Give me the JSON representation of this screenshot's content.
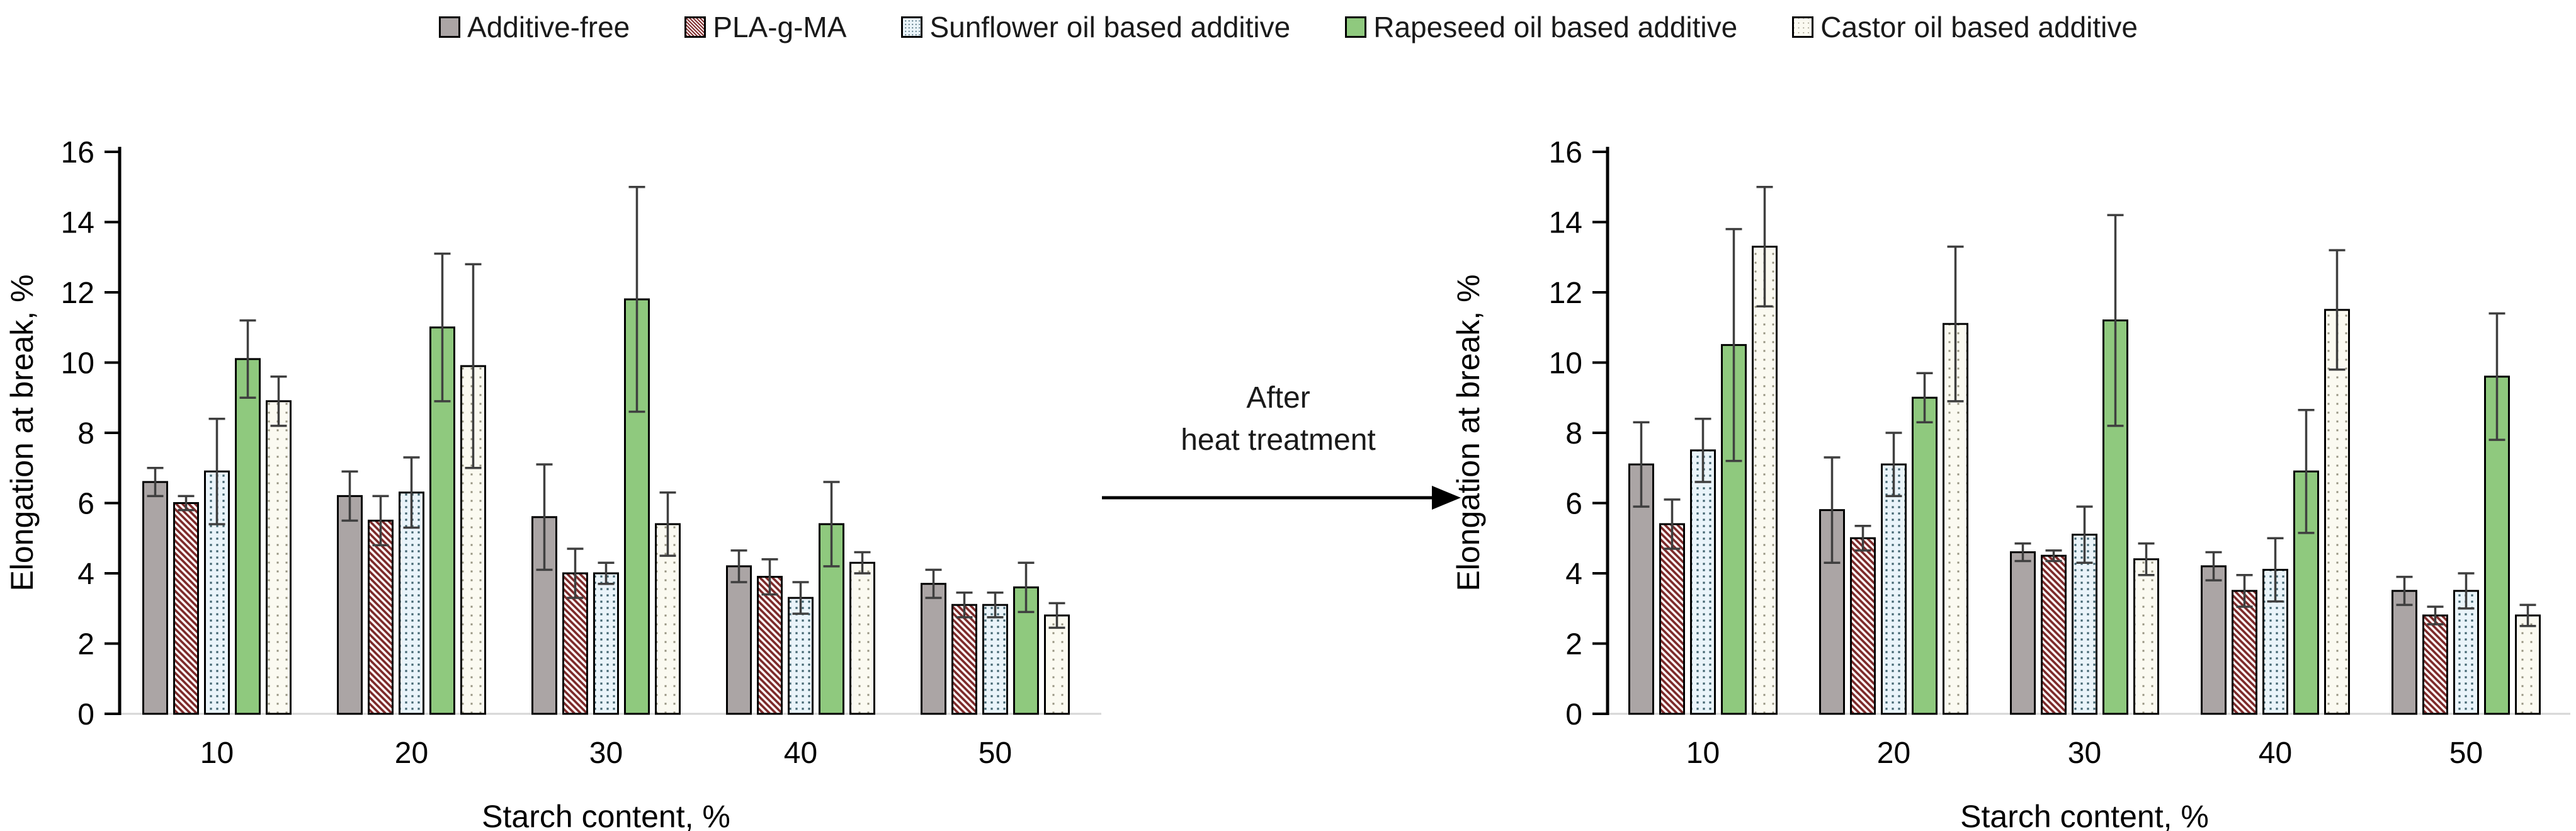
{
  "page": {
    "background": "#ffffff"
  },
  "colors": {
    "bar_border": "#000000",
    "error_bar": "#3f3f3f",
    "baseline": "#d6d6d6",
    "axis": "#000000",
    "text": "#1a1a1a"
  },
  "legend": {
    "items": [
      {
        "key": "additive_free",
        "label": "Additive-free"
      },
      {
        "key": "pla_g_ma",
        "label": "PLA-g-MA"
      },
      {
        "key": "sunflower",
        "label": "Sunflower oil based additive"
      },
      {
        "key": "rapeseed",
        "label": "Rapeseed oil based additive"
      },
      {
        "key": "castor",
        "label": "Castor oil based additive"
      }
    ]
  },
  "series_styles": [
    {
      "key": "additive_free",
      "fill": "solid",
      "color": "#aba5a5"
    },
    {
      "key": "pla_g_ma",
      "fill": "stripes",
      "bg": "#fcf3f3",
      "fg": "#7c2a2a",
      "tile": 10
    },
    {
      "key": "sunflower",
      "fill": "dots",
      "bg": "#eaf4fa",
      "fg": "#3e616d",
      "tile": 10,
      "dot": 3.2
    },
    {
      "key": "rapeseed",
      "fill": "solid",
      "color": "#8fc97e"
    },
    {
      "key": "castor",
      "fill": "dots",
      "bg": "#fbfaf1",
      "fg": "#94917f",
      "tile": 14,
      "dot": 3
    }
  ],
  "annotation": {
    "line1": "After",
    "line2": "heat treatment"
  },
  "chart_data": [
    {
      "id": "before",
      "type": "bar",
      "title": "",
      "xlabel": "Starch content, %",
      "ylabel": "Elongation at break, %",
      "categories": [
        "10",
        "20",
        "30",
        "40",
        "50"
      ],
      "ylim": [
        0,
        16
      ],
      "ytick_step": 2,
      "grid": false,
      "legend_position": "top",
      "series": [
        {
          "name": "Additive-free",
          "values": [
            6.6,
            6.2,
            5.6,
            4.2,
            3.7
          ],
          "errors": [
            0.4,
            0.7,
            1.5,
            0.45,
            0.4
          ]
        },
        {
          "name": "PLA-g-MA",
          "values": [
            6.0,
            5.5,
            4.0,
            3.9,
            3.1
          ],
          "errors": [
            0.2,
            0.7,
            0.7,
            0.5,
            0.35
          ]
        },
        {
          "name": "Sunflower oil based additive",
          "values": [
            6.9,
            6.3,
            4.0,
            3.3,
            3.1
          ],
          "errors": [
            1.5,
            1.0,
            0.3,
            0.45,
            0.35
          ]
        },
        {
          "name": "Rapeseed oil based additive",
          "values": [
            10.1,
            11.0,
            11.8,
            5.4,
            3.6
          ],
          "errors": [
            1.1,
            2.1,
            3.2,
            1.2,
            0.7
          ]
        },
        {
          "name": "Castor oil based additive",
          "values": [
            8.9,
            9.9,
            5.4,
            4.3,
            2.8
          ],
          "errors": [
            0.7,
            2.9,
            0.9,
            0.3,
            0.35
          ]
        }
      ]
    },
    {
      "id": "after",
      "type": "bar",
      "title": "",
      "xlabel": "Starch content, %",
      "ylabel": "Elongation at break, %",
      "categories": [
        "10",
        "20",
        "30",
        "40",
        "50"
      ],
      "ylim": [
        0,
        16
      ],
      "ytick_step": 2,
      "grid": false,
      "legend_position": "top",
      "series": [
        {
          "name": "Additive-free",
          "values": [
            7.1,
            5.8,
            4.6,
            4.2,
            3.5
          ],
          "errors": [
            1.2,
            1.5,
            0.25,
            0.4,
            0.4
          ]
        },
        {
          "name": "PLA-g-MA",
          "values": [
            5.4,
            5.0,
            4.5,
            3.5,
            2.8
          ],
          "errors": [
            0.7,
            0.35,
            0.15,
            0.45,
            0.25
          ]
        },
        {
          "name": "Sunflower oil based additive",
          "values": [
            7.5,
            7.1,
            5.1,
            4.1,
            3.5
          ],
          "errors": [
            0.9,
            0.9,
            0.8,
            0.9,
            0.5
          ]
        },
        {
          "name": "Rapeseed oil based additive",
          "values": [
            10.5,
            9.0,
            11.2,
            6.9,
            9.6
          ],
          "errors": [
            3.3,
            0.7,
            3.0,
            1.75,
            1.8
          ]
        },
        {
          "name": "Castor oil based additive",
          "values": [
            13.3,
            11.1,
            4.4,
            11.5,
            2.8
          ],
          "errors": [
            1.7,
            2.2,
            0.45,
            1.7,
            0.3
          ]
        }
      ]
    }
  ]
}
